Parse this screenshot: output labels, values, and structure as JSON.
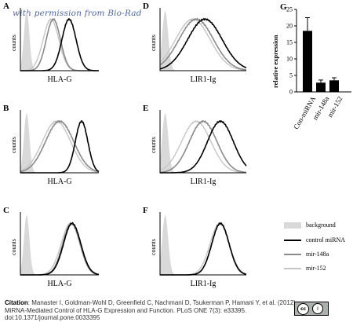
{
  "watermark": "with permission from Bio-Rad",
  "colors": {
    "background_fill": "#d9d9d9",
    "control": "#000000",
    "mir148a": "#8a8a8a",
    "mir152": "#c6c6c6"
  },
  "legend": {
    "background": "background",
    "control": "control miRNA",
    "mir148a": "mir-148a",
    "mir152": "mir-152"
  },
  "chart_data": [
    {
      "panel": "A",
      "type": "area",
      "xlabel": "HLA-G",
      "ylabel": "counts",
      "background_peak": 0.08,
      "series": [
        {
          "name": "control miRNA",
          "center": 0.62,
          "width": 0.09
        },
        {
          "name": "mir-148a",
          "center": 0.42,
          "width": 0.09
        },
        {
          "name": "mir-152",
          "center": 0.39,
          "width": 0.1
        }
      ]
    },
    {
      "panel": "B",
      "type": "area",
      "xlabel": "HLA-G",
      "ylabel": "counts",
      "background_peak": 0.08,
      "series": [
        {
          "name": "control miRNA",
          "center": 0.78,
          "width": 0.08
        },
        {
          "name": "mir-148a",
          "center": 0.5,
          "width": 0.18
        },
        {
          "name": "mir-152",
          "center": 0.46,
          "width": 0.18
        }
      ]
    },
    {
      "panel": "C",
      "type": "area",
      "xlabel": "HLA-G",
      "ylabel": "counts",
      "background_peak": 0.08,
      "series": [
        {
          "name": "control miRNA",
          "center": 0.66,
          "width": 0.11
        },
        {
          "name": "mir-148a",
          "center": 0.65,
          "width": 0.11
        },
        {
          "name": "mir-152",
          "center": 0.64,
          "width": 0.12
        }
      ]
    },
    {
      "panel": "D",
      "type": "area",
      "xlabel": "LIR1-Ig",
      "ylabel": "counts",
      "background_peak": 0.06,
      "series": [
        {
          "name": "control miRNA",
          "center": 0.52,
          "width": 0.2
        },
        {
          "name": "mir-148a",
          "center": 0.42,
          "width": 0.2
        },
        {
          "name": "mir-152",
          "center": 0.38,
          "width": 0.2
        }
      ]
    },
    {
      "panel": "E",
      "type": "area",
      "xlabel": "LIR1-Ig",
      "ylabel": "counts",
      "background_peak": 0.06,
      "series": [
        {
          "name": "control miRNA",
          "center": 0.7,
          "width": 0.15
        },
        {
          "name": "mir-148a",
          "center": 0.5,
          "width": 0.16
        },
        {
          "name": "mir-152",
          "center": 0.42,
          "width": 0.17
        }
      ]
    },
    {
      "panel": "F",
      "type": "area",
      "xlabel": "LIR1-Ig",
      "ylabel": "counts",
      "background_peak": 0.06,
      "series": [
        {
          "name": "control miRNA",
          "center": 0.7,
          "width": 0.1
        },
        {
          "name": "mir-148a",
          "center": 0.7,
          "width": 0.1
        },
        {
          "name": "mir-152",
          "center": 0.69,
          "width": 0.11
        }
      ]
    },
    {
      "panel": "G",
      "type": "bar",
      "ylabel": "relative expression",
      "categories": [
        "Con-miRNA",
        "mir-148a",
        "mir-152"
      ],
      "values": [
        18.5,
        2.8,
        3.5
      ],
      "errors": [
        4.0,
        0.8,
        0.8
      ],
      "ylim": [
        0,
        25
      ],
      "yticks": [
        "0",
        "5",
        "10",
        "15",
        "20",
        "25"
      ]
    }
  ],
  "citation": {
    "label": "Citation",
    "text": ": Manaster I, Goldman-Wohl D, Greenfield C, Nachmani D, Tsukerman P, Hamani Y, et al. (2012) MiRNA-Mediated Control of HLA-G Expression and Function. PLoS ONE 7(3): e33395. doi:10.1371/journal.pone.0033395"
  },
  "license": {
    "cc": "cc",
    "by": "i"
  }
}
